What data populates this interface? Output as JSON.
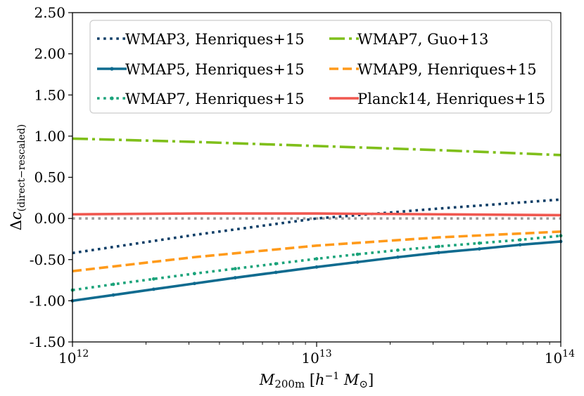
{
  "chart_data": {
    "type": "line",
    "xlabel": "M_200m [h^-1 M_⊙]",
    "ylabel": "Δc_(direct−rescaled)",
    "xscale": "log",
    "xlim": [
      1000000000000.0,
      100000000000000.0
    ],
    "ylim": [
      -1.5,
      2.5
    ],
    "x_ticks": [
      {
        "value": 1000000000000.0,
        "base": "10",
        "exp": "12"
      },
      {
        "value": 10000000000000.0,
        "base": "10",
        "exp": "13"
      },
      {
        "value": 100000000000000.0,
        "base": "10",
        "exp": "14"
      }
    ],
    "y_ticks": [
      {
        "value": -1.5,
        "label": "-1.50"
      },
      {
        "value": -1.0,
        "label": "-1.00"
      },
      {
        "value": -0.5,
        "label": "-0.50"
      },
      {
        "value": 0.0,
        "label": "0.00"
      },
      {
        "value": 0.5,
        "label": "0.50"
      },
      {
        "value": 1.0,
        "label": "1.00"
      },
      {
        "value": 1.5,
        "label": "1.50"
      },
      {
        "value": 2.0,
        "label": "2.00"
      },
      {
        "value": 2.5,
        "label": "2.50"
      }
    ],
    "grid": false,
    "legend": {
      "placement": "top",
      "columns": 2
    },
    "reference_line": {
      "y": 0.0,
      "color": "#999999",
      "style": "dotted"
    },
    "series": [
      {
        "name": "WMAP3, Henriques+15",
        "color": "#0b3d66",
        "style": "dotted",
        "x": [
          1000000000000.0,
          3160000000000.0,
          10000000000000.0,
          31600000000000.0,
          100000000000000.0
        ],
        "y": [
          -0.42,
          -0.2,
          0.0,
          0.12,
          0.23
        ]
      },
      {
        "name": "WMAP5, Henriques+15",
        "color": "#0f6b8f",
        "style": "solid-markers",
        "x": [
          1000000000000.0,
          1470000000000.0,
          2150000000000.0,
          3160000000000.0,
          4640000000000.0,
          6810000000000.0,
          10000000000000.0,
          14700000000000.0,
          21500000000000.0,
          31600000000000.0,
          46400000000000.0,
          68100000000000.0,
          100000000000000.0
        ],
        "y": [
          -1.0,
          -0.93,
          -0.86,
          -0.79,
          -0.72,
          -0.655,
          -0.59,
          -0.53,
          -0.47,
          -0.415,
          -0.37,
          -0.32,
          -0.28
        ]
      },
      {
        "name": "WMAP7, Henriques+15",
        "color": "#1aa37a",
        "style": "dotted-markers",
        "x": [
          1000000000000.0,
          1470000000000.0,
          2150000000000.0,
          3160000000000.0,
          4640000000000.0,
          6810000000000.0,
          10000000000000.0,
          14700000000000.0,
          21500000000000.0,
          31600000000000.0,
          46400000000000.0,
          68100000000000.0,
          100000000000000.0
        ],
        "y": [
          -0.87,
          -0.8,
          -0.735,
          -0.67,
          -0.61,
          -0.55,
          -0.49,
          -0.435,
          -0.385,
          -0.34,
          -0.3,
          -0.26,
          -0.21
        ]
      },
      {
        "name": "WMAP7, Guo+13",
        "color": "#7fbf1a",
        "style": "dashdot",
        "x": [
          1000000000000.0,
          3160000000000.0,
          10000000000000.0,
          31600000000000.0,
          100000000000000.0
        ],
        "y": [
          0.97,
          0.93,
          0.88,
          0.83,
          0.77
        ]
      },
      {
        "name": "WMAP9, Henriques+15",
        "color": "#ff9a1a",
        "style": "dashed",
        "x": [
          1000000000000.0,
          3160000000000.0,
          10000000000000.0,
          31600000000000.0,
          100000000000000.0
        ],
        "y": [
          -0.64,
          -0.47,
          -0.33,
          -0.23,
          -0.16
        ]
      },
      {
        "name": "Planck14, Henriques+15",
        "color": "#f0574f",
        "style": "solid",
        "x": [
          1000000000000.0,
          3160000000000.0,
          10000000000000.0,
          31600000000000.0,
          100000000000000.0
        ],
        "y": [
          0.05,
          0.06,
          0.06,
          0.05,
          0.04
        ]
      }
    ]
  }
}
